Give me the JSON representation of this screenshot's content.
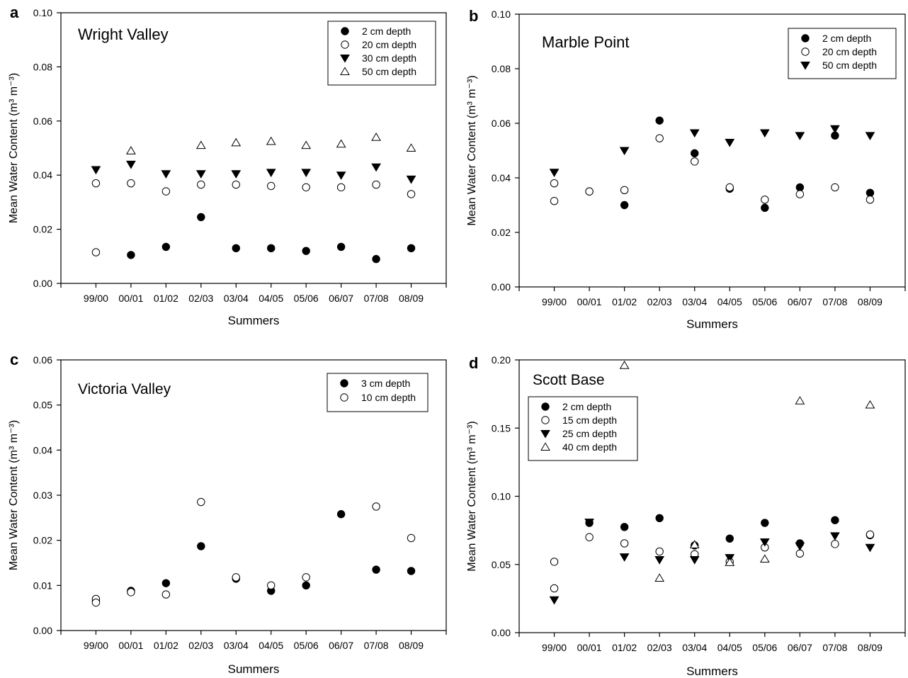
{
  "chart_data": [
    {
      "panel_letter": "a",
      "type": "scatter",
      "title": "Wright Valley",
      "xlabel": "Summers",
      "ylabel": "Mean Water Content (m³ m⁻³)",
      "ylim": [
        0,
        0.1
      ],
      "yticks": [
        "0.00",
        "0.02",
        "0.04",
        "0.06",
        "0.08",
        "0.10"
      ],
      "categories": [
        "99/00",
        "00/01",
        "01/02",
        "02/03",
        "03/04",
        "04/05",
        "05/06",
        "06/07",
        "07/08",
        "08/09"
      ],
      "legend_position": "top-right",
      "series": [
        {
          "name": "2 cm depth",
          "marker": "filled-circle",
          "values": [
            null,
            0.0105,
            0.0135,
            0.0245,
            0.013,
            0.013,
            0.012,
            0.0135,
            0.009,
            0.013
          ]
        },
        {
          "name": "20 cm depth",
          "marker": "open-circle",
          "values": [
            0.037,
            0.037,
            0.034,
            0.0365,
            0.0365,
            0.036,
            0.0355,
            0.0355,
            0.0365,
            0.033
          ]
        },
        {
          "name": "20 cm depth",
          "marker": "open-circle",
          "values": [
            0.0115,
            null,
            null,
            null,
            null,
            null,
            null,
            null,
            null,
            null
          ]
        },
        {
          "name": "30 cm depth",
          "marker": "filled-triangle-down",
          "values": [
            0.042,
            0.044,
            0.0405,
            0.0405,
            0.0405,
            0.041,
            0.041,
            0.04,
            0.043,
            0.0385
          ]
        },
        {
          "name": "50 cm depth",
          "marker": "open-triangle-up",
          "values": [
            null,
            0.049,
            null,
            0.051,
            0.052,
            0.0525,
            0.051,
            0.0515,
            0.054,
            0.05
          ]
        }
      ]
    },
    {
      "panel_letter": "b",
      "type": "scatter",
      "title": "Marble Point",
      "xlabel": "Summers",
      "ylabel": "Mean Water Content (m³ m⁻³)",
      "ylim": [
        0,
        0.1
      ],
      "yticks": [
        "0.00",
        "0.02",
        "0.04",
        "0.06",
        "0.08",
        "0.10"
      ],
      "categories": [
        "99/00",
        "00/01",
        "01/02",
        "02/03",
        "03/04",
        "04/05",
        "05/06",
        "06/07",
        "07/08",
        "08/09"
      ],
      "legend_position": "top-right",
      "series": [
        {
          "name": "2 cm depth",
          "marker": "filled-circle",
          "values": [
            null,
            0.035,
            0.03,
            0.061,
            0.049,
            0.036,
            0.029,
            0.0365,
            0.0555,
            0.0345
          ]
        },
        {
          "name": "20 cm depth",
          "marker": "open-circle",
          "values": [
            0.038,
            0.035,
            0.0355,
            0.0545,
            0.046,
            0.0365,
            0.032,
            0.034,
            0.0365,
            0.032
          ]
        },
        {
          "name": "20 cm depth",
          "marker": "open-circle",
          "values": [
            0.0315,
            null,
            null,
            null,
            null,
            null,
            null,
            null,
            null,
            null
          ]
        },
        {
          "name": "50 cm depth",
          "marker": "filled-triangle-down",
          "values": [
            0.042,
            null,
            0.05,
            null,
            0.0565,
            0.053,
            0.0565,
            0.0555,
            0.058,
            0.0555
          ]
        }
      ]
    },
    {
      "panel_letter": "c",
      "type": "scatter",
      "title": "Victoria Valley",
      "xlabel": "Summers",
      "ylabel": "Mean Water Content (m³ m⁻³)",
      "ylim": [
        0,
        0.06
      ],
      "yticks": [
        "0.00",
        "0.01",
        "0.02",
        "0.03",
        "0.04",
        "0.05",
        "0.06"
      ],
      "categories": [
        "99/00",
        "00/01",
        "01/02",
        "02/03",
        "03/04",
        "04/05",
        "05/06",
        "06/07",
        "07/08",
        "08/09"
      ],
      "legend_position": "top-right",
      "series": [
        {
          "name": "3 cm depth",
          "marker": "filled-circle",
          "values": [
            0.0065,
            0.0088,
            0.0105,
            0.0187,
            0.0115,
            0.0088,
            0.01,
            0.0258,
            0.0135,
            0.0132
          ]
        },
        {
          "name": "10 cm depth",
          "marker": "open-circle",
          "values": [
            0.007,
            0.0085,
            0.008,
            0.0285,
            0.0118,
            0.01,
            0.0118,
            null,
            0.0275,
            0.0205
          ]
        },
        {
          "name": "10 cm depth",
          "marker": "open-circle",
          "values": [
            0.0062,
            null,
            null,
            null,
            null,
            null,
            null,
            null,
            null,
            null
          ]
        }
      ]
    },
    {
      "panel_letter": "d",
      "type": "scatter",
      "title": "Scott Base",
      "xlabel": "Summers",
      "ylabel": "Mean Water Content (m³ m⁻³)",
      "ylim": [
        0,
        0.2
      ],
      "yticks": [
        "0.00",
        "0.05",
        "0.10",
        "0.15",
        "0.20"
      ],
      "categories": [
        "99/00",
        "00/01",
        "01/02",
        "02/03",
        "03/04",
        "04/05",
        "05/06",
        "06/07",
        "07/08",
        "08/09"
      ],
      "legend_position": "top-left",
      "series": [
        {
          "name": "2 cm depth",
          "marker": "filled-circle",
          "values": [
            null,
            0.0805,
            0.0775,
            0.084,
            0.064,
            0.069,
            0.0805,
            0.0655,
            0.0825,
            0.0715
          ]
        },
        {
          "name": "15 cm depth",
          "marker": "open-circle",
          "values": [
            0.052,
            0.07,
            0.0655,
            0.0595,
            0.0575,
            0.052,
            0.0625,
            0.058,
            0.065,
            0.072
          ]
        },
        {
          "name": "15 cm depth",
          "marker": "open-circle",
          "values": [
            0.0325,
            null,
            null,
            null,
            null,
            null,
            null,
            null,
            null,
            null
          ]
        },
        {
          "name": "25 cm depth",
          "marker": "filled-triangle-down",
          "values": [
            0.024,
            0.081,
            0.0555,
            0.0535,
            0.0535,
            0.055,
            0.0665,
            0.0635,
            0.071,
            0.0625
          ]
        },
        {
          "name": "40 cm depth",
          "marker": "open-triangle-up",
          "values": [
            null,
            null,
            0.196,
            0.04,
            0.0645,
            0.0515,
            0.054,
            0.17,
            null,
            0.167
          ]
        }
      ]
    }
  ]
}
